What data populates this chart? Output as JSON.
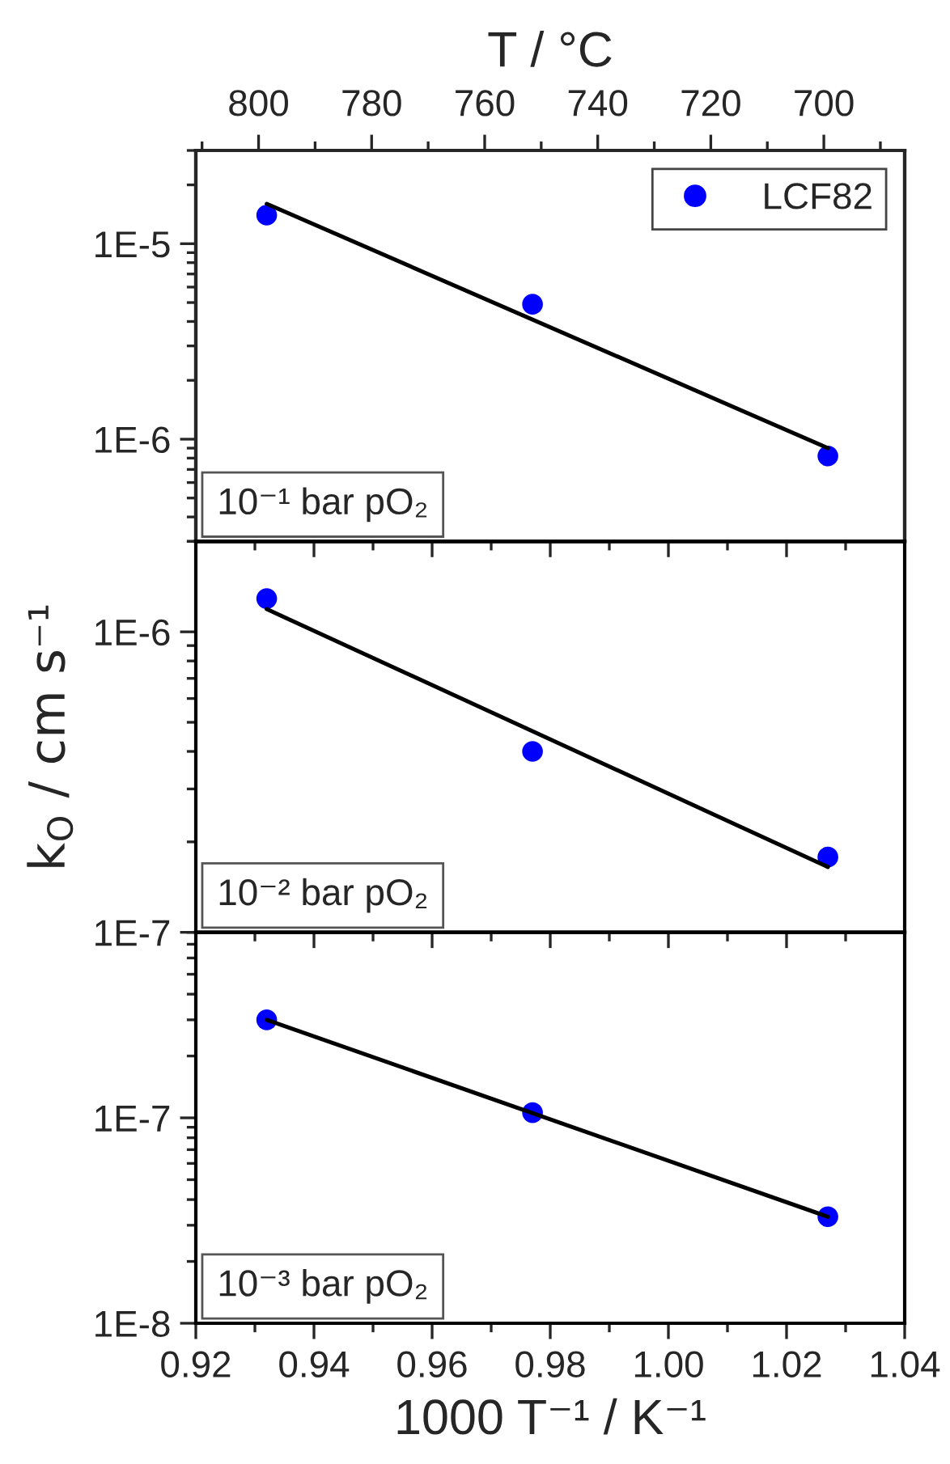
{
  "chart_data": [
    {
      "type": "scatter",
      "log": "y",
      "legend": "top right",
      "tick_labels": "y",
      "x2label": "T / °C",
      "x2lim": [
        811.1,
        685.7
      ],
      "x2ticks": [
        {
          "value": 810,
          "label": null
        },
        800,
        {
          "value": 790,
          "label": null
        },
        780,
        {
          "value": 770,
          "label": null
        },
        760,
        {
          "value": 750,
          "label": null
        },
        740,
        {
          "value": 730,
          "label": null
        },
        720,
        {
          "value": 710,
          "label": null
        },
        700,
        {
          "value": 690,
          "label": null
        }
      ],
      "xlim": [
        0.92,
        1.04
      ],
      "xticks": [
        0.92,
        {
          "value": 0.93,
          "label": null
        },
        0.94,
        {
          "value": 0.95,
          "label": null
        },
        0.96,
        {
          "value": 0.97,
          "label": null
        },
        0.98,
        {
          "value": 0.99,
          "label": null
        },
        1.0,
        {
          "value": 1.01,
          "label": null
        },
        1.02,
        {
          "value": 1.03,
          "label": null
        },
        1.04
      ],
      "ylim": [
        3e-07,
        3e-05
      ],
      "yticks": [
        {
          "value": 3e-07,
          "label": null
        },
        {
          "value": 4e-07,
          "label": null
        },
        {
          "value": 5e-07,
          "label": null
        },
        {
          "value": 6e-07,
          "label": null
        },
        {
          "value": 7e-07,
          "label": null
        },
        {
          "value": 8e-07,
          "label": null
        },
        {
          "value": 9e-07,
          "label": null
        },
        {
          "value": 1e-06,
          "label": "1E-6"
        },
        {
          "value": 2e-06,
          "label": null
        },
        {
          "value": 3e-06,
          "label": null
        },
        {
          "value": 4e-06,
          "label": null
        },
        {
          "value": 5e-06,
          "label": null
        },
        {
          "value": 6e-06,
          "label": null
        },
        {
          "value": 7e-06,
          "label": null
        },
        {
          "value": 8e-06,
          "label": null
        },
        {
          "value": 9e-06,
          "label": null
        },
        {
          "value": 1e-05,
          "label": "1E-5"
        },
        {
          "value": 2e-05,
          "label": null
        },
        {
          "value": 3e-05,
          "label": null
        }
      ],
      "series": [
        {
          "name": "LCF82",
          "marker": "circle",
          "color": "#0000ff",
          "x": [
            0.932,
            0.977,
            1.027
          ],
          "values": [
            1.4e-05,
            4.9e-06,
            8.2e-07
          ]
        },
        {
          "type": "line",
          "color": "#000000",
          "x": [
            0.932,
            1.027
          ],
          "values": [
            1.6e-05,
            9e-07
          ]
        }
      ],
      "annotations": [
        "10⁻¹ bar pO₂"
      ]
    },
    {
      "type": "scatter",
      "log": "y",
      "tick_labels": "y",
      "ylabel": "k$_{O}$ / cm s⁻¹",
      "xlim": [
        0.92,
        1.04
      ],
      "xticks": [
        0.92,
        {
          "value": 0.93,
          "label": null
        },
        0.94,
        {
          "value": 0.95,
          "label": null
        },
        0.96,
        {
          "value": 0.97,
          "label": null
        },
        0.98,
        {
          "value": 0.99,
          "label": null
        },
        1.0,
        {
          "value": 1.01,
          "label": null
        },
        1.02,
        {
          "value": 1.03,
          "label": null
        },
        1.04
      ],
      "ylim": [
        1e-07,
        2e-06
      ],
      "yticks": [
        {
          "value": 1e-07,
          "label": "1E-7"
        },
        {
          "value": 2e-07,
          "label": null
        },
        {
          "value": 3e-07,
          "label": null
        },
        {
          "value": 4e-07,
          "label": null
        },
        {
          "value": 5e-07,
          "label": null
        },
        {
          "value": 6e-07,
          "label": null
        },
        {
          "value": 7e-07,
          "label": null
        },
        {
          "value": 8e-07,
          "label": null
        },
        {
          "value": 9e-07,
          "label": null
        },
        {
          "value": 1e-06,
          "label": "1E-6"
        },
        {
          "value": 2e-06,
          "label": null
        }
      ],
      "series": [
        {
          "marker": "circle",
          "color": "#0000ff",
          "x": [
            0.932,
            0.977,
            1.027
          ],
          "values": [
            1.29e-06,
            4e-07,
            1.78e-07
          ]
        },
        {
          "type": "line",
          "color": "#000000",
          "x": [
            0.932,
            1.027
          ],
          "values": [
            1.19e-06,
            1.65e-07
          ]
        }
      ],
      "annotations": [
        "10⁻² bar pO₂"
      ]
    },
    {
      "type": "scatter",
      "log": "y",
      "xlabel": "1000 T⁻¹ / K⁻¹",
      "xlim": [
        0.92,
        1.04
      ],
      "xticks": [
        0.92,
        {
          "value": 0.93,
          "label": null
        },
        0.94,
        {
          "value": 0.95,
          "label": null
        },
        0.96,
        {
          "value": 0.97,
          "label": null
        },
        0.98,
        {
          "value": 0.99,
          "label": null
        },
        {
          "value": 1.0,
          "label": "1.00"
        },
        {
          "value": 1.01,
          "label": null
        },
        1.02,
        {
          "value": 1.03,
          "label": null
        },
        1.04
      ],
      "ylim": [
        1e-08,
        8e-07
      ],
      "yticks": [
        {
          "value": 1e-08,
          "label": "1E-8"
        },
        {
          "value": 2e-08,
          "label": null
        },
        {
          "value": 3e-08,
          "label": null
        },
        {
          "value": 4e-08,
          "label": null
        },
        {
          "value": 5e-08,
          "label": null
        },
        {
          "value": 6e-08,
          "label": null
        },
        {
          "value": 7e-08,
          "label": null
        },
        {
          "value": 8e-08,
          "label": null
        },
        {
          "value": 9e-08,
          "label": null
        },
        {
          "value": 1e-07,
          "label": "1E-7"
        },
        {
          "value": 2e-07,
          "label": null
        },
        {
          "value": 3e-07,
          "label": null
        },
        {
          "value": 4e-07,
          "label": null
        },
        {
          "value": 5e-07,
          "label": null
        },
        {
          "value": 6e-07,
          "label": null
        },
        {
          "value": 7e-07,
          "label": null
        },
        {
          "value": 8e-07,
          "label": null
        }
      ],
      "series": [
        {
          "marker": "circle",
          "color": "#0000ff",
          "x": [
            0.932,
            0.977,
            1.027
          ],
          "values": [
            3e-07,
            1.06e-07,
            3.3e-08
          ]
        },
        {
          "type": "line",
          "color": "#000000",
          "x": [
            0.932,
            1.027
          ],
          "values": [
            3e-07,
            3.3e-08
          ]
        }
      ],
      "annotations": [
        "10⁻³ bar pO₂"
      ]
    }
  ]
}
